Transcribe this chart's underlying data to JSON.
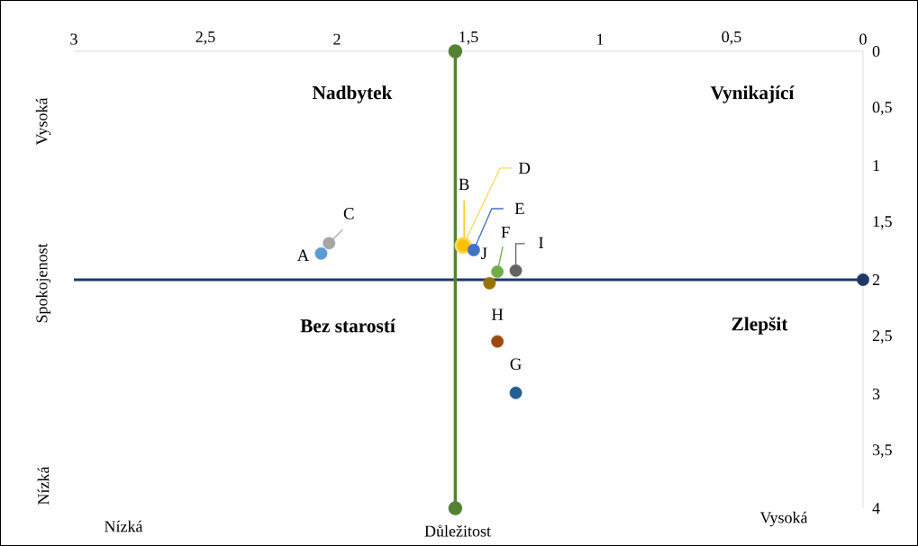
{
  "chart_data": {
    "type": "scatter",
    "xlabel": "Důležitost",
    "ylabel": "Spokojenost",
    "xlim": [
      3,
      0
    ],
    "ylim": [
      4,
      0
    ],
    "xticks": [
      0,
      {
        "value": 0.5,
        "label": "0,5"
      },
      1,
      {
        "value": 1.5,
        "label": "1,5"
      },
      2,
      {
        "value": 2.5,
        "label": "2,5"
      },
      3
    ],
    "yticks": [
      0,
      {
        "value": 0.5,
        "label": "0,5"
      },
      1,
      {
        "value": 1.5,
        "label": "1,5"
      },
      2,
      {
        "value": 2.5,
        "label": "2,5"
      },
      3,
      {
        "value": 3.5,
        "label": "3,5"
      },
      4
    ],
    "marker": "circle",
    "ref_lines": [
      {
        "axis": "y",
        "value": 2,
        "color": "#203864"
      }
    ],
    "series": [
      {
        "type": "line",
        "color": "#548235",
        "x": [
          1.55,
          1.55
        ],
        "values": [
          0,
          4
        ]
      },
      {
        "color": "#203864",
        "x": [
          0
        ],
        "values": [
          2
        ]
      },
      {
        "name": "D",
        "color": "#ffd966",
        "x": [
          1.52
        ],
        "values": [
          1.7
        ]
      },
      {
        "name": "A",
        "color": "#5b9bd5",
        "x": [
          2.06
        ],
        "values": [
          1.77
        ]
      },
      {
        "name": "B",
        "color": "#ffc000",
        "x": [
          1.52
        ],
        "values": [
          1.7
        ]
      },
      {
        "name": "C",
        "color": "#a5a5a5",
        "x": [
          2.03
        ],
        "values": [
          1.68
        ]
      },
      {
        "name": "E",
        "color": "#4472c4",
        "x": [
          1.48
        ],
        "values": [
          1.74
        ]
      },
      {
        "name": "F",
        "color": "#70ad47",
        "x": [
          1.39
        ],
        "values": [
          1.93
        ]
      },
      {
        "name": "G",
        "color": "#255e91",
        "x": [
          1.32
        ],
        "values": [
          2.99
        ]
      },
      {
        "name": "H",
        "color": "#9e480e",
        "x": [
          1.39
        ],
        "values": [
          2.54
        ]
      },
      {
        "name": "I",
        "color": "#636363",
        "x": [
          1.32
        ],
        "values": [
          1.92
        ]
      },
      {
        "name": "J",
        "color": "#997300",
        "x": [
          1.42
        ],
        "values": [
          2.03
        ]
      }
    ],
    "annotations": [
      "Nadbytek",
      "Vynikající",
      "Bez starostí",
      "Zlepšit",
      "Vysoká",
      "Nízká",
      "Nízká",
      "Vysoká"
    ]
  }
}
